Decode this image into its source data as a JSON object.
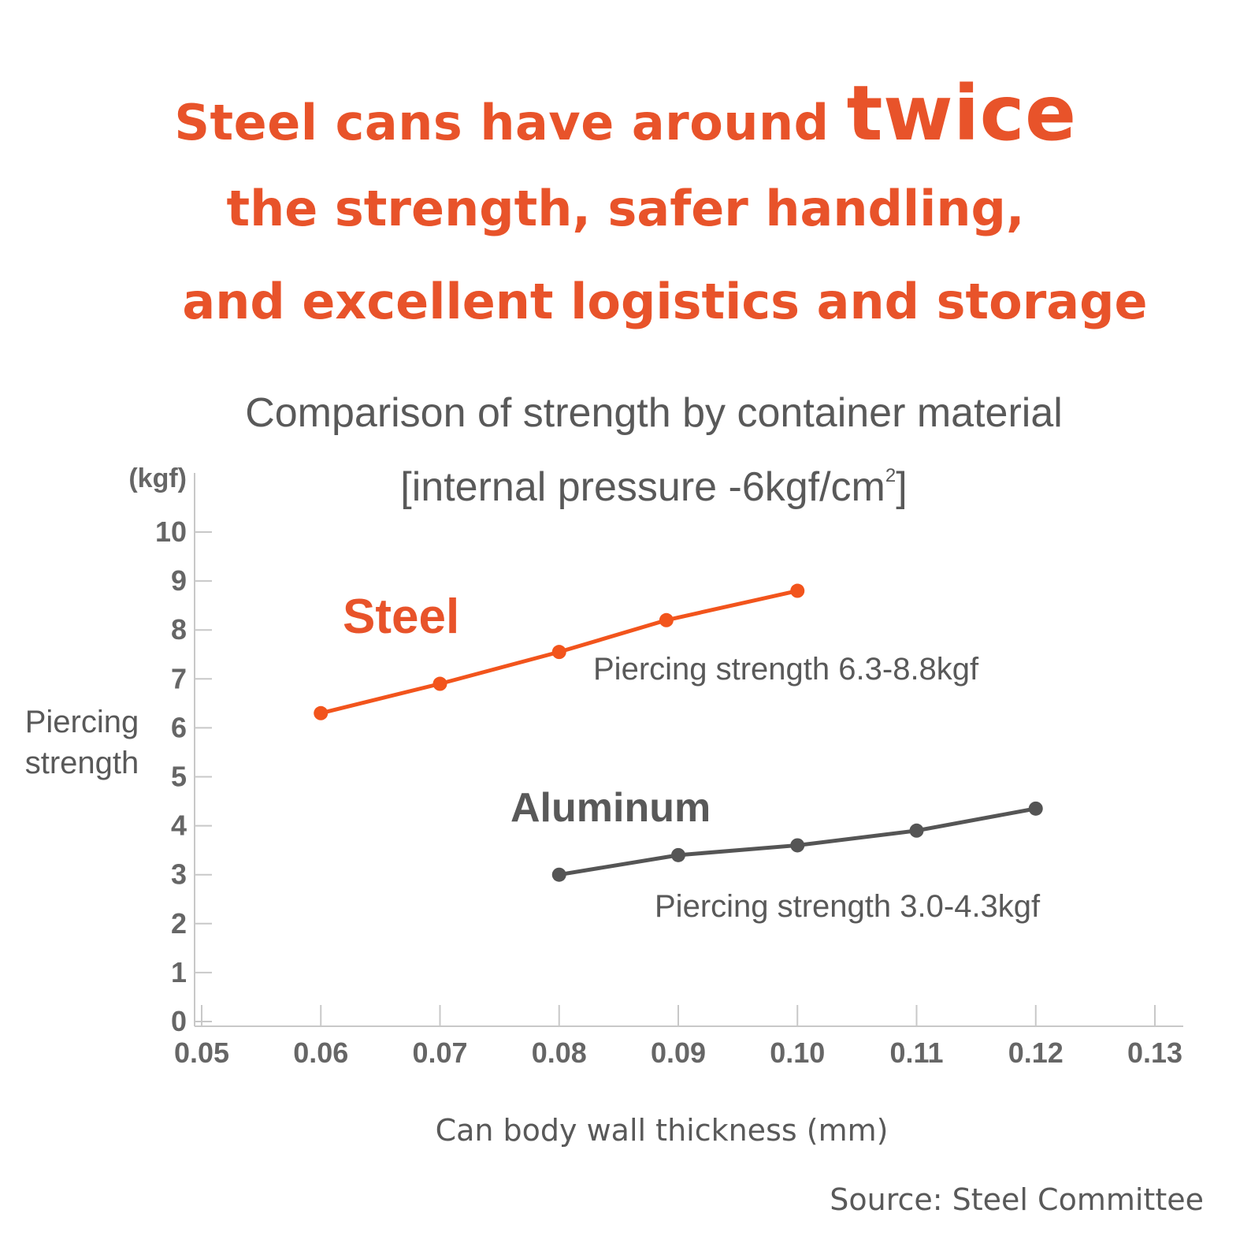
{
  "headline": {
    "line1_prefix": "Steel cans have around ",
    "line1_emphasis": "twice",
    "line2": "the strength, safer handling,",
    "line3": "and excellent logistics and storage"
  },
  "colors": {
    "accent": "#e8532a",
    "steel": "#f2541c",
    "aluminum": "#555555",
    "text": "#595959",
    "axis": "#c8c8c8"
  },
  "chart_data": {
    "type": "line",
    "title": "Comparison of strength by container material",
    "subtitle": "[internal pressure -6kgf/cm",
    "subtitle_sup": "2",
    "subtitle_end": "]",
    "ylabel": "Piercing strength",
    "ylabel_line1": "Piercing",
    "ylabel_line2": "strength",
    "yunit": "(kgf)",
    "xlabel": "Can body wall thickness (mm)",
    "ylim": [
      0,
      10
    ],
    "xlim": [
      0.05,
      0.13
    ],
    "yticks": [
      "0",
      "1",
      "2",
      "3",
      "4",
      "5",
      "6",
      "7",
      "8",
      "9",
      "10"
    ],
    "xticks": [
      "0.05",
      "0.06",
      "0.07",
      "0.08",
      "0.09",
      "0.10",
      "0.11",
      "0.12",
      "0.13"
    ],
    "grid": false,
    "series": [
      {
        "name": "Steel",
        "color": "#f2541c",
        "annotation": "Piercing strength 6.3-8.8kgf",
        "points": [
          [
            0.06,
            6.3
          ],
          [
            0.07,
            6.9
          ],
          [
            0.08,
            7.55
          ],
          [
            0.089,
            8.2
          ],
          [
            0.1,
            8.8
          ]
        ]
      },
      {
        "name": "Aluminum",
        "color": "#555555",
        "annotation": "Piercing strength 3.0-4.3kgf",
        "points": [
          [
            0.08,
            3.0
          ],
          [
            0.09,
            3.4
          ],
          [
            0.1,
            3.6
          ],
          [
            0.11,
            3.9
          ],
          [
            0.12,
            4.35
          ]
        ]
      }
    ]
  },
  "source": "Source: Steel Committee"
}
